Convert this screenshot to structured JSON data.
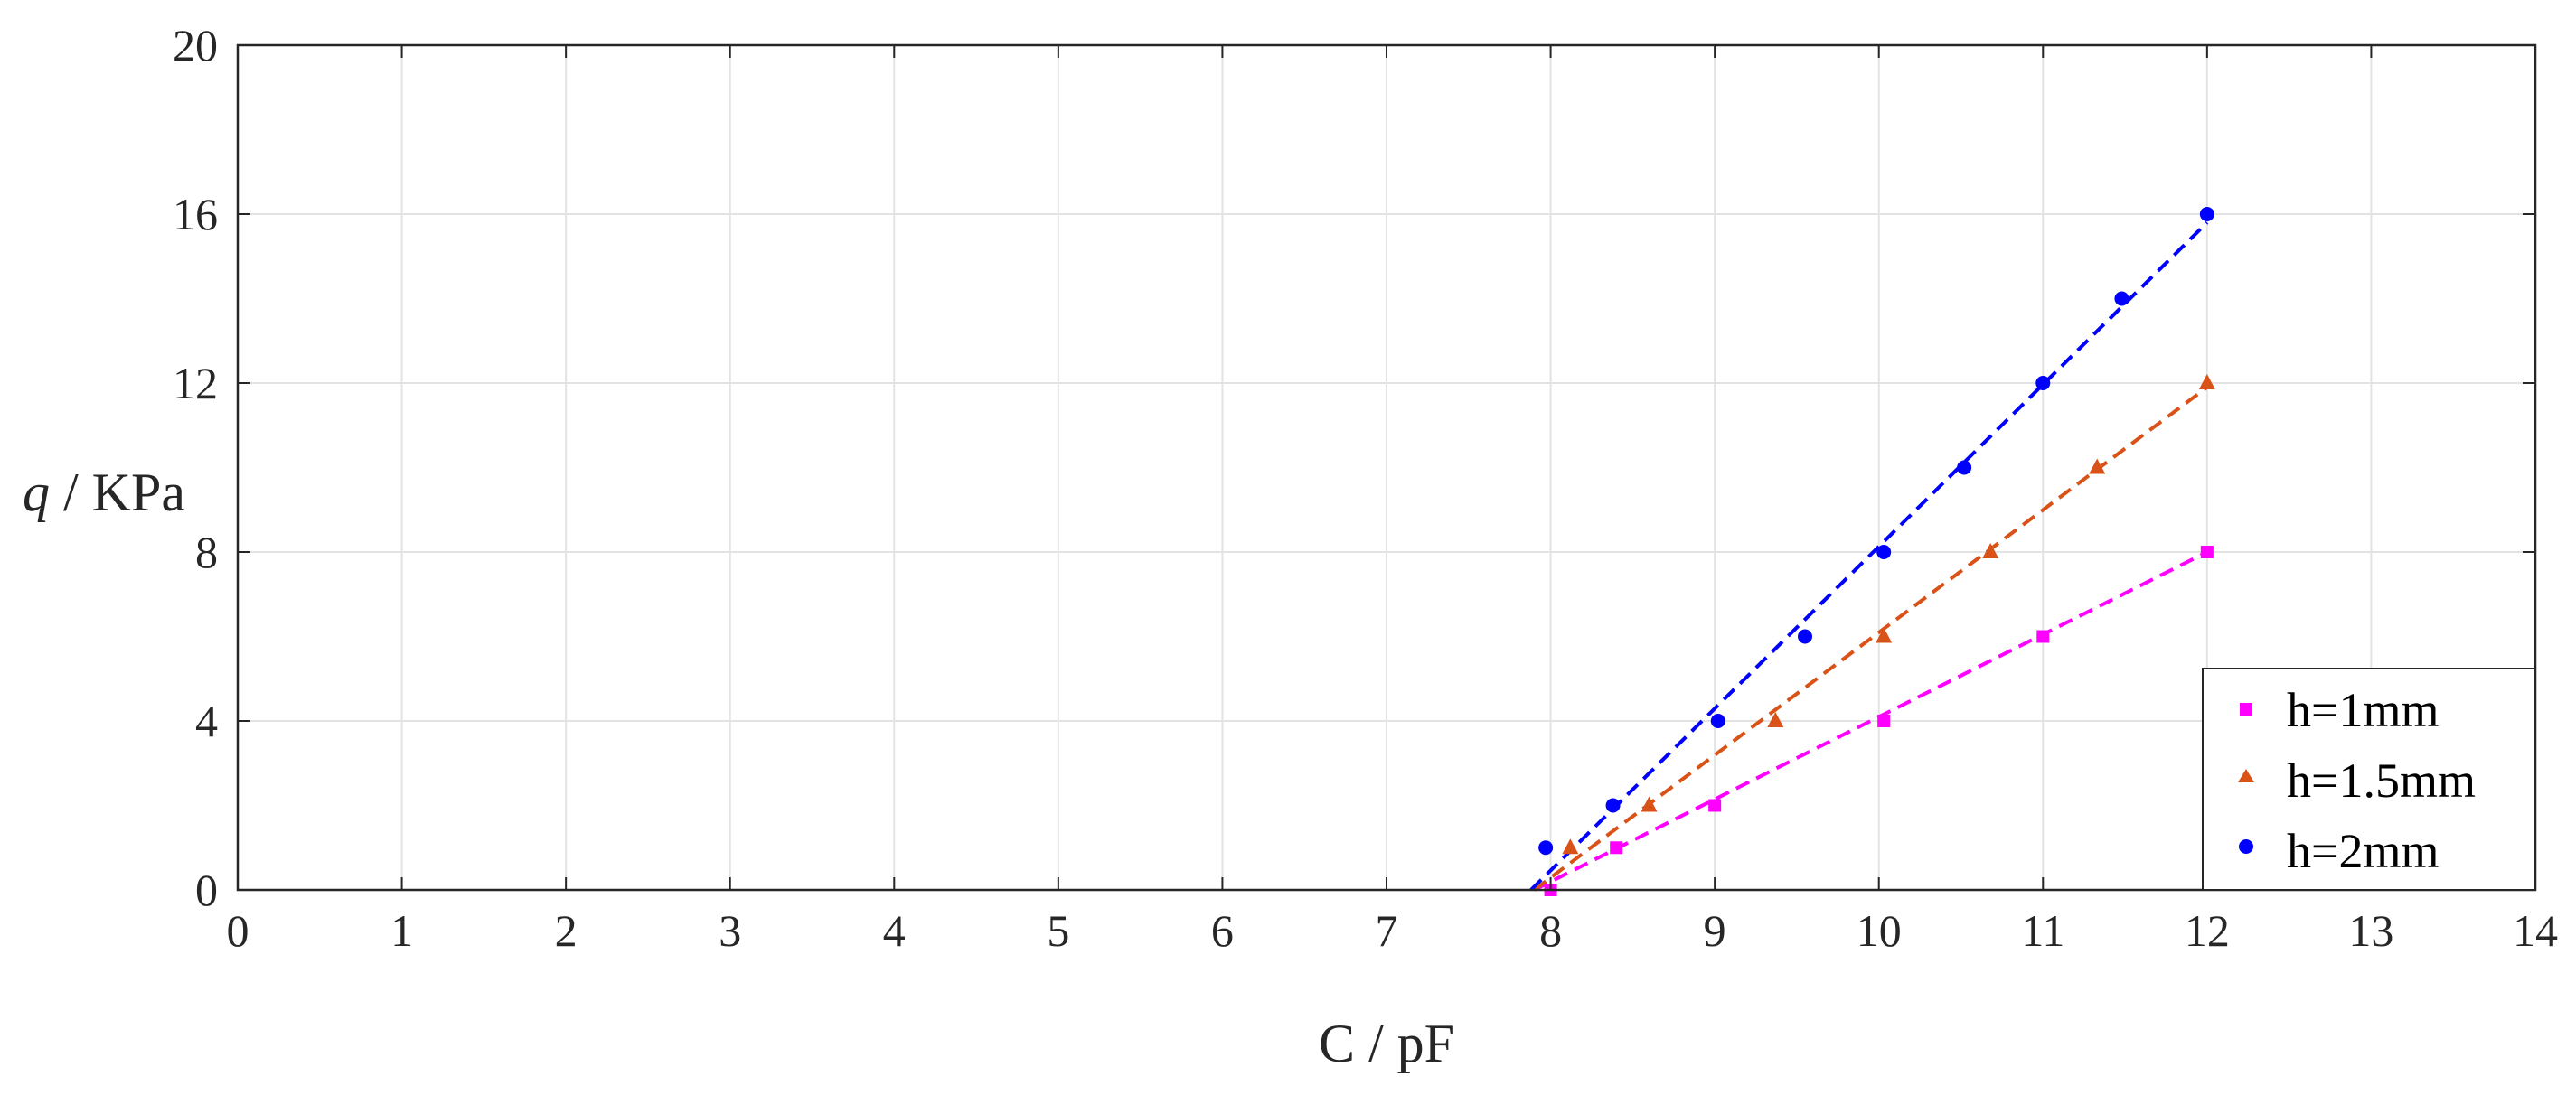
{
  "chart_data": {
    "type": "scatter",
    "xlabel": {
      "var": "C",
      "sep": " / ",
      "unit": "pF"
    },
    "ylabel": {
      "var": "q",
      "sep": " / ",
      "unit": "KPa"
    },
    "xlim": [
      0,
      14
    ],
    "ylim": [
      0,
      20
    ],
    "xticks": [
      0,
      1,
      2,
      3,
      4,
      5,
      6,
      7,
      8,
      9,
      10,
      11,
      12,
      13,
      14
    ],
    "yticks": [
      0,
      4,
      8,
      12,
      16,
      20
    ],
    "grid": true,
    "legend_position": "bottom-right",
    "series": [
      {
        "name": "h=1mm",
        "marker": "square",
        "color": "#ff00ff",
        "x": [
          8.0,
          8.4,
          9.0,
          10.03,
          11.0,
          12.0
        ],
        "y": [
          0,
          1,
          2,
          4,
          6,
          8
        ],
        "fit": {
          "x": [
            7.9,
            12.0
          ],
          "y": [
            0.0,
            8.0
          ]
        }
      },
      {
        "name": "h=1.5mm",
        "marker": "triangle",
        "color": "#d95319",
        "x": [
          8.12,
          8.6,
          9.37,
          10.03,
          10.68,
          11.33,
          12.0
        ],
        "y": [
          1,
          2,
          4,
          6,
          8,
          10,
          12
        ],
        "fit": {
          "x": [
            7.9,
            12.0
          ],
          "y": [
            0.0,
            11.9
          ]
        }
      },
      {
        "name": "h=2mm",
        "marker": "circle",
        "color": "#0000ff",
        "x": [
          7.97,
          8.38,
          9.02,
          9.55,
          10.03,
          10.52,
          11.0,
          11.48,
          12.0
        ],
        "y": [
          1,
          2,
          4,
          6,
          8,
          10,
          12,
          14,
          16
        ],
        "fit": {
          "x": [
            7.88,
            12.0
          ],
          "y": [
            0.0,
            15.8
          ]
        }
      }
    ]
  }
}
